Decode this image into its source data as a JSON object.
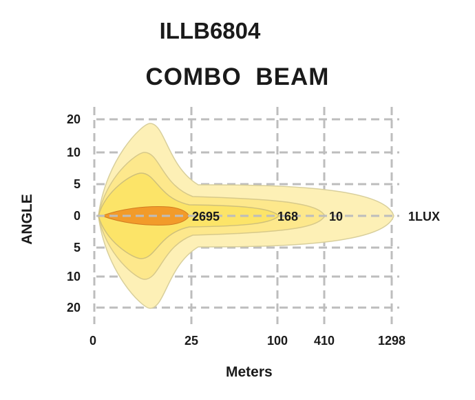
{
  "chart_data": {
    "type": "area",
    "title": "ILLB6804",
    "subtitle": "COMBO  BEAM",
    "xlabel": "Meters",
    "ylabel": "ANGLE",
    "x_ticks": [
      "0",
      "25",
      "100",
      "410",
      "1298"
    ],
    "y_ticks": [
      "20",
      "10",
      "5",
      "0",
      "5",
      "10",
      "20"
    ],
    "grid": true,
    "contours": [
      {
        "label": "1LUX",
        "reach": "1298",
        "color": "#fdf0b6"
      },
      {
        "label": "10",
        "reach": "410",
        "color": "#fde88c"
      },
      {
        "label": "168",
        "reach": "100",
        "color": "#fce468"
      },
      {
        "label": "2695",
        "reach": "25",
        "color": "#f29b2a"
      }
    ]
  }
}
